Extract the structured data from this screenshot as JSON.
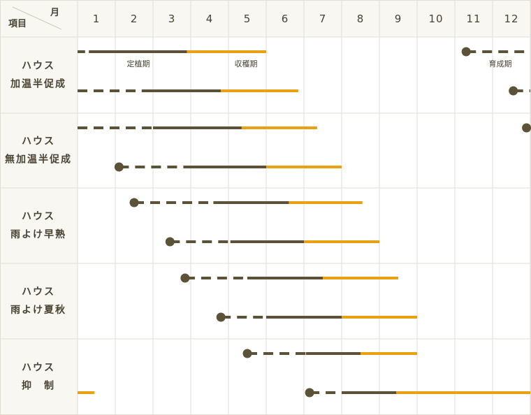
{
  "header": {
    "item_label": "項目",
    "month_label": "月",
    "months": [
      "1",
      "2",
      "3",
      "4",
      "5",
      "6",
      "7",
      "8",
      "9",
      "10",
      "11",
      "12"
    ]
  },
  "legend_annotations": {
    "growing": "育成期",
    "planting": "定植期",
    "harvest": "収穫期"
  },
  "colors": {
    "growing": "#5b5237",
    "planting": "#5b5237",
    "harvest": "#e9a015",
    "grid": "#e2ded4",
    "header_bg": "#f8f7f2"
  },
  "chart_data": {
    "type": "gantt",
    "x_unit": "month",
    "xlim": [
      1,
      13
    ],
    "groups": [
      {
        "label_line1": "ハウス",
        "label_line2": "加温半促成",
        "lanes": [
          {
            "segments": [
              {
                "phase": "growing",
                "start": 11.3,
                "end": 13.0,
                "marker": true
              },
              {
                "phase": "growing",
                "start": 1.0,
                "end": 1.2
              },
              {
                "phase": "planting",
                "start": 1.3,
                "end": 3.9
              },
              {
                "phase": "harvest",
                "start": 3.9,
                "end": 6.0
              }
            ]
          },
          {
            "segments": [
              {
                "phase": "growing",
                "start": 12.55,
                "end": 13.0,
                "marker": true
              },
              {
                "phase": "growing",
                "start": 1.0,
                "end": 2.7
              },
              {
                "phase": "planting",
                "start": 2.7,
                "end": 4.8
              },
              {
                "phase": "harvest",
                "start": 4.8,
                "end": 6.85
              }
            ]
          }
        ]
      },
      {
        "label_line1": "ハウス",
        "label_line2": "無加温半促成",
        "lanes": [
          {
            "segments": [
              {
                "phase": "growing",
                "start": 12.9,
                "end": 13.0,
                "marker": true
              },
              {
                "phase": "growing",
                "start": 1.0,
                "end": 3.0
              },
              {
                "phase": "planting",
                "start": 3.0,
                "end": 5.35
              },
              {
                "phase": "harvest",
                "start": 5.35,
                "end": 7.35
              }
            ]
          },
          {
            "segments": [
              {
                "phase": "growing",
                "start": 2.1,
                "end": 4.0,
                "marker": true
              },
              {
                "phase": "planting",
                "start": 4.0,
                "end": 6.0
              },
              {
                "phase": "harvest",
                "start": 6.0,
                "end": 8.0
              }
            ]
          }
        ]
      },
      {
        "label_line1": "ハウス",
        "label_line2": "雨よけ早熟",
        "lanes": [
          {
            "segments": [
              {
                "phase": "growing",
                "start": 2.5,
                "end": 4.6,
                "marker": true
              },
              {
                "phase": "planting",
                "start": 4.6,
                "end": 6.6
              },
              {
                "phase": "harvest",
                "start": 6.6,
                "end": 8.55
              }
            ]
          },
          {
            "segments": [
              {
                "phase": "growing",
                "start": 3.45,
                "end": 5.05,
                "marker": true
              },
              {
                "phase": "planting",
                "start": 5.05,
                "end": 7.0
              },
              {
                "phase": "harvest",
                "start": 7.0,
                "end": 9.0
              }
            ]
          }
        ]
      },
      {
        "label_line1": "ハウス",
        "label_line2": "雨よけ夏秋",
        "lanes": [
          {
            "segments": [
              {
                "phase": "growing",
                "start": 3.85,
                "end": 5.5,
                "marker": true
              },
              {
                "phase": "planting",
                "start": 5.5,
                "end": 7.5
              },
              {
                "phase": "harvest",
                "start": 7.5,
                "end": 9.5
              }
            ]
          },
          {
            "segments": [
              {
                "phase": "growing",
                "start": 4.8,
                "end": 6.0,
                "marker": true
              },
              {
                "phase": "planting",
                "start": 6.0,
                "end": 8.0
              },
              {
                "phase": "harvest",
                "start": 8.0,
                "end": 10.0
              }
            ]
          }
        ]
      },
      {
        "label_line1": "ハウス",
        "label_line2": "抑　制",
        "lanes": [
          {
            "segments": [
              {
                "phase": "growing",
                "start": 5.5,
                "end": 7.05,
                "marker": true
              },
              {
                "phase": "planting",
                "start": 7.05,
                "end": 8.5
              },
              {
                "phase": "harvest",
                "start": 8.5,
                "end": 10.0
              }
            ]
          },
          {
            "segments": [
              {
                "phase": "harvest",
                "start": 1.0,
                "end": 1.45
              },
              {
                "phase": "growing",
                "start": 7.15,
                "end": 8.0,
                "marker": true
              },
              {
                "phase": "planting",
                "start": 8.0,
                "end": 9.45
              },
              {
                "phase": "harvest",
                "start": 9.45,
                "end": 13.0
              }
            ]
          }
        ]
      }
    ]
  }
}
